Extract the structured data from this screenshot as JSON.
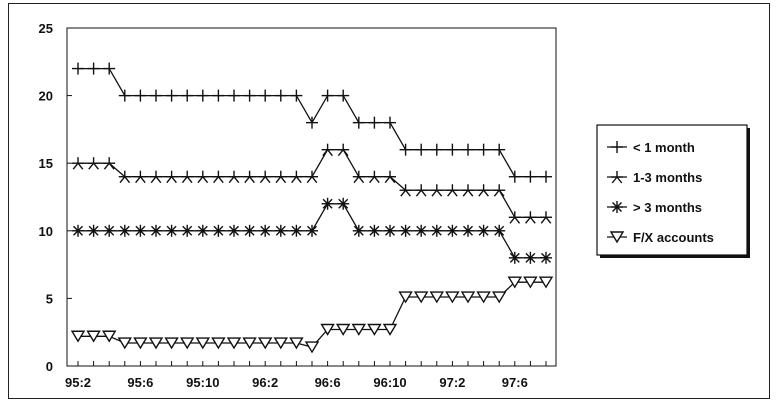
{
  "chart_data": {
    "type": "line",
    "title": "",
    "xlabel": "",
    "ylabel": "",
    "ylim": [
      0,
      25
    ],
    "yticks": [
      0,
      5,
      10,
      15,
      20,
      25
    ],
    "x_tick_labels": [
      "95:2",
      "95:6",
      "95:10",
      "96:2",
      "96:6",
      "96:10",
      "97:2",
      "97:6"
    ],
    "x": [
      "95:2",
      "95:3",
      "95:4",
      "95:5",
      "95:6",
      "95:7",
      "95:8",
      "95:9",
      "95:10",
      "95:11",
      "95:12",
      "96:1",
      "96:2",
      "96:3",
      "96:4",
      "96:5",
      "96:6",
      "96:7",
      "96:8",
      "96:9",
      "96:10",
      "96:11",
      "96:12",
      "97:1",
      "97:2",
      "97:3",
      "97:4",
      "97:5",
      "97:6",
      "97:7",
      "97:8"
    ],
    "grid": false,
    "legend_position": "right",
    "series": [
      {
        "name": "< 1 month",
        "marker": "plus",
        "values": [
          22,
          22,
          22,
          20,
          20,
          20,
          20,
          20,
          20,
          20,
          20,
          20,
          20,
          20,
          20,
          18,
          20,
          20,
          18,
          18,
          18,
          16,
          16,
          16,
          16,
          16,
          16,
          16,
          14,
          14,
          14
        ]
      },
      {
        "name": "1-3 months",
        "marker": "star-asterisk",
        "values": [
          15,
          15,
          15,
          14,
          14,
          14,
          14,
          14,
          14,
          14,
          14,
          14,
          14,
          14,
          14,
          14,
          16,
          16,
          14,
          14,
          14,
          13,
          13,
          13,
          13,
          13,
          13,
          13,
          11,
          11,
          11
        ]
      },
      {
        "name": "> 3 months",
        "marker": "asterisk",
        "values": [
          10,
          10,
          10,
          10,
          10,
          10,
          10,
          10,
          10,
          10,
          10,
          10,
          10,
          10,
          10,
          10,
          12,
          12,
          10,
          10,
          10,
          10,
          10,
          10,
          10,
          10,
          10,
          10,
          8,
          8,
          8
        ]
      },
      {
        "name": "F/X accounts",
        "marker": "triangle-down",
        "values": [
          2.2,
          2.2,
          2.2,
          1.7,
          1.7,
          1.7,
          1.7,
          1.7,
          1.7,
          1.7,
          1.7,
          1.7,
          1.7,
          1.7,
          1.7,
          1.4,
          2.7,
          2.7,
          2.7,
          2.7,
          2.7,
          5.1,
          5.1,
          5.1,
          5.1,
          5.1,
          5.1,
          5.1,
          6.2,
          6.2,
          6.2
        ]
      }
    ]
  }
}
